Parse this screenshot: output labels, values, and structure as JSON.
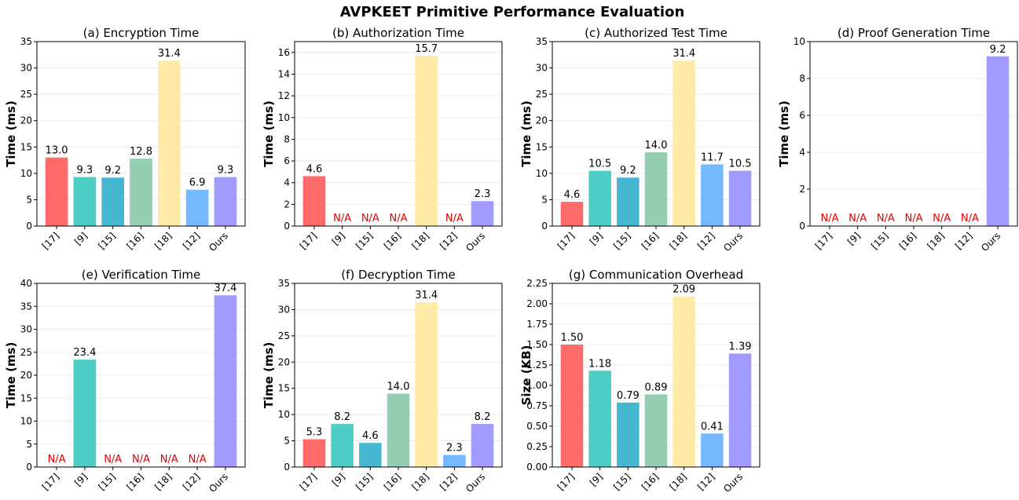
{
  "figure": {
    "title": "AVPKEET Primitive Performance Evaluation"
  },
  "colors": {
    "[17]": "#ff6b6b",
    "[9]": "#4ecdc4",
    "[15]": "#45b7d1",
    "[16]": "#96ceb4",
    "[18]": "#ffeaa7",
    "[12]": "#74b9ff",
    "Ours": "#a29bfe"
  },
  "chart_data": [
    {
      "type": "bar",
      "title": "(a) Encryption Time",
      "ylabel": "Time (ms)",
      "ylim": [
        0,
        35
      ],
      "yticks": [
        "0",
        "5",
        "10",
        "15",
        "20",
        "25",
        "30",
        "35"
      ],
      "categories": [
        "[17]",
        "[9]",
        "[15]",
        "[16]",
        "[18]",
        "[12]",
        "Ours"
      ],
      "values": [
        13.0,
        9.3,
        9.2,
        12.8,
        31.4,
        6.9,
        9.3
      ],
      "labels": [
        "13.0",
        "9.3",
        "9.2",
        "12.8",
        "31.4",
        "6.9",
        "9.3"
      ],
      "grid": "y"
    },
    {
      "type": "bar",
      "title": "(b) Authorization Time",
      "ylabel": "Time (ms)",
      "ylim": [
        0,
        17
      ],
      "yticks": [
        "0",
        "2",
        "4",
        "6",
        "8",
        "10",
        "12",
        "14",
        "16"
      ],
      "categories": [
        "[17]",
        "[9]",
        "[15]",
        "[16]",
        "[18]",
        "[12]",
        "Ours"
      ],
      "values": [
        4.6,
        null,
        null,
        null,
        15.7,
        null,
        2.3
      ],
      "labels": [
        "4.6",
        "N/A",
        "N/A",
        "N/A",
        "15.7",
        "N/A",
        "2.3"
      ],
      "grid": "y"
    },
    {
      "type": "bar",
      "title": "(c) Authorized Test Time",
      "ylabel": "Time (ms)",
      "ylim": [
        0,
        35
      ],
      "yticks": [
        "0",
        "5",
        "10",
        "15",
        "20",
        "25",
        "30",
        "35"
      ],
      "categories": [
        "[17]",
        "[9]",
        "[15]",
        "[16]",
        "[18]",
        "[12]",
        "Ours"
      ],
      "values": [
        4.6,
        10.5,
        9.2,
        14.0,
        31.4,
        11.7,
        10.5
      ],
      "labels": [
        "4.6",
        "10.5",
        "9.2",
        "14.0",
        "31.4",
        "11.7",
        "10.5"
      ],
      "grid": "y"
    },
    {
      "type": "bar",
      "title": "(d) Proof Generation Time",
      "ylabel": "Time (ms)",
      "ylim": [
        0,
        10
      ],
      "yticks": [
        "0",
        "2",
        "4",
        "6",
        "8",
        "10"
      ],
      "categories": [
        "[17]",
        "[9]",
        "[15]",
        "[16]",
        "[18]",
        "[12]",
        "Ours"
      ],
      "values": [
        null,
        null,
        null,
        null,
        null,
        null,
        9.2
      ],
      "labels": [
        "N/A",
        "N/A",
        "N/A",
        "N/A",
        "N/A",
        "N/A",
        "9.2"
      ],
      "grid": "y"
    },
    {
      "type": "bar",
      "title": "(e) Verification Time",
      "ylabel": "Time (ms)",
      "ylim": [
        0,
        40
      ],
      "yticks": [
        "0",
        "5",
        "10",
        "15",
        "20",
        "25",
        "30",
        "35",
        "40"
      ],
      "categories": [
        "[17]",
        "[9]",
        "[15]",
        "[16]",
        "[18]",
        "[12]",
        "Ours"
      ],
      "values": [
        null,
        23.4,
        null,
        null,
        null,
        null,
        37.4
      ],
      "labels": [
        "N/A",
        "23.4",
        "N/A",
        "N/A",
        "N/A",
        "N/A",
        "37.4"
      ],
      "grid": "y"
    },
    {
      "type": "bar",
      "title": "(f) Decryption Time",
      "ylabel": "Time (ms)",
      "ylim": [
        0,
        35
      ],
      "yticks": [
        "0",
        "5",
        "10",
        "15",
        "20",
        "25",
        "30",
        "35"
      ],
      "categories": [
        "[17]",
        "[9]",
        "[15]",
        "[16]",
        "[18]",
        "[12]",
        "Ours"
      ],
      "values": [
        5.3,
        8.2,
        4.6,
        14.0,
        31.4,
        2.3,
        8.2
      ],
      "labels": [
        "5.3",
        "8.2",
        "4.6",
        "14.0",
        "31.4",
        "2.3",
        "8.2"
      ],
      "grid": "y"
    },
    {
      "type": "bar",
      "title": "(g) Communication Overhead",
      "ylabel": "Size (KB)",
      "ylim": [
        0,
        2.25
      ],
      "yticks": [
        "0.00",
        "0.25",
        "0.50",
        "0.75",
        "1.00",
        "1.25",
        "1.50",
        "1.75",
        "2.00",
        "2.25"
      ],
      "categories": [
        "[17]",
        "[9]",
        "[15]",
        "[16]",
        "[18]",
        "[12]",
        "Ours"
      ],
      "values": [
        1.5,
        1.18,
        0.79,
        0.89,
        2.09,
        0.41,
        1.39
      ],
      "labels": [
        "1.50",
        "1.18",
        "0.79",
        "0.89",
        "2.09",
        "0.41",
        "1.39"
      ],
      "grid": "y"
    }
  ]
}
